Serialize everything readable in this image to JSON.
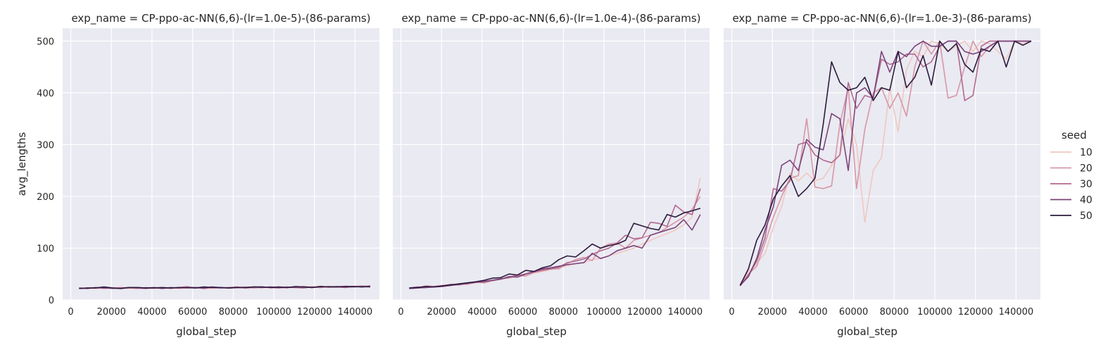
{
  "chart_data": {
    "type": "line",
    "x": [
      4096,
      8192,
      12288,
      16384,
      20480,
      24576,
      28672,
      32768,
      36864,
      40960,
      45056,
      49152,
      53248,
      57344,
      61440,
      65536,
      69632,
      73728,
      77824,
      81920,
      86016,
      90112,
      94208,
      98304,
      102400,
      106496,
      110592,
      114688,
      118784,
      122880,
      126976,
      131072,
      135168,
      139264,
      143360,
      147456
    ],
    "xlabel": "global_step",
    "ylabel": "avg_lengths",
    "xticks": [
      "0",
      "20000",
      "40000",
      "60000",
      "80000",
      "100000",
      "120000",
      "140000"
    ],
    "yticks": [
      "0",
      "100",
      "200",
      "300",
      "400",
      "500"
    ],
    "xlim": [
      -4000,
      152000
    ],
    "ylim": [
      0,
      525
    ],
    "grid": true,
    "legend": {
      "title": "seed",
      "placement": "right",
      "entries": [
        "10",
        "20",
        "30",
        "40",
        "50"
      ]
    },
    "colors": {
      "10": "#efc8c0",
      "20": "#d796a6",
      "30": "#b16890",
      "40": "#7c4379",
      "50": "#2b1a3d",
      "background": "#eaeaf2",
      "grid": "#ffffff"
    },
    "panels": [
      {
        "title": "exp_name = CP-ppo-ac-NN(6,6)-(lr=1.0e-5)-(86-params)",
        "series": [
          {
            "name": "10",
            "values": [
              22,
              23,
              22,
              23,
              24,
              23,
              22,
              24,
              23,
              22,
              23,
              24,
              22,
              23,
              24,
              23,
              22,
              24,
              23,
              24,
              23,
              24,
              24,
              23,
              24,
              23,
              24,
              24,
              25,
              26,
              24,
              25,
              27,
              25,
              26,
              25
            ]
          },
          {
            "name": "20",
            "values": [
              23,
              22,
              24,
              22,
              23,
              24,
              23,
              22,
              24,
              23,
              24,
              22,
              24,
              26,
              23,
              24,
              25,
              23,
              24,
              24,
              25,
              23,
              24,
              25,
              24,
              25,
              24,
              26,
              25,
              24,
              26,
              25,
              25,
              26,
              27,
              26
            ]
          },
          {
            "name": "30",
            "values": [
              22,
              23,
              23,
              24,
              22,
              23,
              24,
              23,
              22,
              24,
              23,
              23,
              24,
              23,
              24,
              22,
              24,
              23,
              24,
              25,
              23,
              24,
              25,
              24,
              23,
              25,
              24,
              23,
              25,
              24,
              26,
              25,
              24,
              26,
              25,
              27
            ]
          },
          {
            "name": "40",
            "values": [
              23,
              22,
              24,
              23,
              23,
              22,
              24,
              24,
              23,
              24,
              22,
              24,
              23,
              24,
              24,
              23,
              25,
              24,
              23,
              24,
              24,
              25,
              24,
              25,
              24,
              24,
              26,
              25,
              24,
              26,
              25,
              26,
              25,
              25,
              26,
              25
            ]
          },
          {
            "name": "50",
            "values": [
              22,
              23,
              23,
              25,
              23,
              22,
              24,
              24,
              23,
              23,
              24,
              23,
              24,
              24,
              23,
              25,
              24,
              24,
              23,
              24,
              24,
              25,
              25,
              24,
              25,
              24,
              25,
              25,
              24,
              26,
              25,
              25,
              26,
              26,
              25,
              26
            ]
          }
        ]
      },
      {
        "title": "exp_name = CP-ppo-ac-NN(6,6)-(lr=1.0e-4)-(86-params)",
        "series": [
          {
            "name": "10",
            "values": [
              23,
              24,
              25,
              26,
              27,
              28,
              30,
              31,
              33,
              35,
              37,
              40,
              42,
              45,
              48,
              52,
              55,
              58,
              62,
              66,
              70,
              72,
              78,
              80,
              85,
              90,
              95,
              100,
              108,
              115,
              122,
              128,
              135,
              145,
              160,
              236
            ]
          },
          {
            "name": "20",
            "values": [
              22,
              24,
              27,
              26,
              28,
              29,
              31,
              30,
              34,
              33,
              37,
              40,
              44,
              48,
              46,
              53,
              56,
              60,
              60,
              70,
              78,
              82,
              76,
              100,
              108,
              110,
              100,
              115,
              120,
              125,
              130,
              140,
              150,
              160,
              175,
              200
            ]
          },
          {
            "name": "30",
            "values": [
              23,
              25,
              24,
              26,
              27,
              30,
              29,
              32,
              35,
              34,
              38,
              41,
              43,
              47,
              50,
              54,
              58,
              60,
              63,
              72,
              75,
              79,
              88,
              95,
              100,
              110,
              125,
              118,
              120,
              150,
              148,
              142,
              183,
              170,
              165,
              215
            ]
          },
          {
            "name": "40",
            "values": [
              22,
              23,
              24,
              25,
              26,
              28,
              30,
              32,
              34,
              36,
              38,
              40,
              45,
              44,
              50,
              55,
              60,
              62,
              65,
              68,
              70,
              72,
              90,
              80,
              85,
              95,
              100,
              105,
              100,
              125,
              130,
              135,
              140,
              155,
              135,
              165
            ]
          },
          {
            "name": "50",
            "values": [
              23,
              24,
              26,
              25,
              27,
              29,
              31,
              33,
              35,
              38,
              42,
              43,
              50,
              48,
              57,
              55,
              62,
              66,
              78,
              85,
              83,
              95,
              108,
              100,
              105,
              108,
              115,
              148,
              143,
              138,
              135,
              165,
              160,
              168,
              172,
              177
            ]
          }
        ]
      },
      {
        "title": "exp_name = CP-ppo-ac-NN(6,6)-(lr=1.0e-3)-(86-params)",
        "series": [
          {
            "name": "10",
            "values": [
              30,
              55,
              70,
              90,
              140,
              180,
              245,
              230,
              245,
              230,
              235,
              260,
              280,
              350,
              300,
              150,
              250,
              275,
              410,
              325,
              445,
              480,
              470,
              500,
              495,
              480,
              490,
              500,
              480,
              500,
              495,
              480,
              465,
              500,
              495,
              500
            ]
          },
          {
            "name": "20",
            "values": [
              28,
              50,
              65,
              110,
              160,
              200,
              235,
              240,
              350,
              218,
              215,
              220,
              340,
              410,
              215,
              330,
              400,
              410,
              370,
              400,
              355,
              450,
              500,
              475,
              500,
              390,
              395,
              450,
              500,
              470,
              490,
              500,
              500,
              500,
              500,
              500
            ]
          },
          {
            "name": "30",
            "values": [
              27,
              48,
              75,
              120,
              215,
              210,
              230,
              300,
              305,
              280,
              270,
              265,
              280,
              420,
              370,
              395,
              390,
              465,
              455,
              460,
              475,
              475,
              450,
              460,
              490,
              500,
              500,
              385,
              395,
              490,
              500,
              500,
              500,
              500,
              500,
              500
            ]
          },
          {
            "name": "40",
            "values": [
              28,
              45,
              80,
              135,
              180,
              260,
              270,
              250,
              310,
              295,
              290,
              360,
              350,
              250,
              400,
              410,
              390,
              480,
              440,
              480,
              470,
              490,
              500,
              490,
              490,
              500,
              500,
              480,
              475,
              480,
              490,
              500,
              500,
              500,
              500,
              500
            ]
          },
          {
            "name": "50",
            "values": [
              28,
              60,
              115,
              145,
              195,
              220,
              240,
              200,
              215,
              235,
              340,
              460,
              420,
              405,
              410,
              430,
              385,
              410,
              405,
              480,
              410,
              430,
              472,
              415,
              500,
              480,
              495,
              455,
              440,
              485,
              480,
              500,
              450,
              500,
              492,
              500
            ]
          }
        ]
      }
    ]
  }
}
